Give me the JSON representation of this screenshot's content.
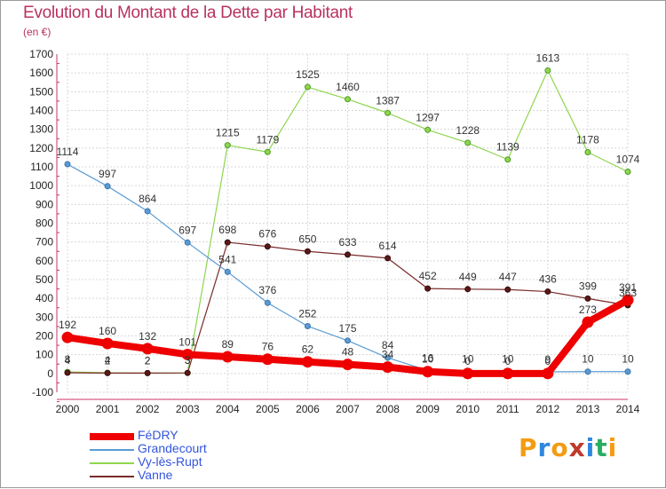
{
  "title": "Evolution du Montant de la Dette par Habitant",
  "subtitle": "(en €)",
  "brand": {
    "letters": [
      "P",
      "r",
      "o",
      "x",
      "i",
      "t",
      "i"
    ],
    "colors": [
      "#f39c12",
      "#2e86de",
      "#f39c12",
      "#c0392b",
      "#2e86de",
      "#27ae60",
      "#f39c12"
    ]
  },
  "chart_data": {
    "type": "line",
    "title": "Evolution du Montant de la Dette par Habitant",
    "ylabel": "(en €)",
    "xlabel": "",
    "x": [
      "2000",
      "2001",
      "2002",
      "2003",
      "2004",
      "2005",
      "2006",
      "2007",
      "2008",
      "2009",
      "2010",
      "2011",
      "2012",
      "2013",
      "2014"
    ],
    "ylim": [
      -100,
      1700
    ],
    "yticks": [
      -100,
      0,
      100,
      200,
      300,
      400,
      500,
      600,
      700,
      800,
      900,
      1000,
      1100,
      1200,
      1300,
      1400,
      1500,
      1600,
      1700
    ],
    "grid": true,
    "legend": "bottom-left",
    "series": [
      {
        "name": "FéDRY",
        "color": "#ee0000",
        "values": [
          192,
          160,
          132,
          101,
          89,
          76,
          62,
          48,
          34,
          10,
          0,
          0,
          0,
          273,
          391
        ],
        "labels": [
          "192",
          "160",
          "132",
          "101",
          "89",
          "76",
          "62",
          "48",
          "34",
          "10",
          "0",
          "0",
          "0",
          "273",
          "391"
        ]
      },
      {
        "name": "Grandecourt",
        "color": "#5b9bd5",
        "values": [
          1114,
          997,
          864,
          697,
          541,
          376,
          252,
          175,
          84,
          16,
          10,
          10,
          9,
          10,
          10
        ],
        "labels": [
          "1114",
          "997",
          "864",
          "697",
          "541",
          "376",
          "252",
          "175",
          "84",
          "16",
          "10",
          "10",
          "9",
          "10",
          "10"
        ]
      },
      {
        "name": "Vy-lès-Rupt",
        "color": "#8ed64e",
        "values": [
          8,
          4,
          2,
          3,
          1215,
          1179,
          1525,
          1460,
          1387,
          1297,
          1228,
          1139,
          1613,
          1178,
          1074
        ],
        "labels": [
          "8",
          "4",
          "2",
          "3",
          "1215",
          "1179",
          "1525",
          "1460",
          "1387",
          "1297",
          "1228",
          "1139",
          "1613",
          "1178",
          "1074"
        ]
      },
      {
        "name": "Vanne",
        "color": "#7a2a2a",
        "values": [
          4,
          2,
          2,
          3,
          698,
          676,
          650,
          633,
          614,
          452,
          449,
          447,
          436,
          399,
          363
        ],
        "labels": [
          "4",
          "2",
          "2",
          "3",
          "698",
          "676",
          "650",
          "633",
          "614",
          "452",
          "449",
          "447",
          "436",
          "399",
          "363"
        ]
      }
    ]
  }
}
